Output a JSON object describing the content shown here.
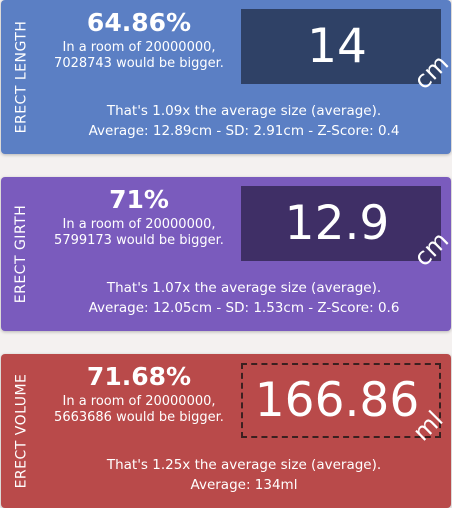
{
  "cards": [
    {
      "label": "ERECT LENGTH",
      "percent": "64.86%",
      "room_line1": "In a room of 20000000,",
      "room_line2": "7028743 would be bigger.",
      "value": "14",
      "unit": "cm",
      "times_line": "That's 1.09x the average size (average).",
      "stats_line": "Average: 12.89cm - SD: 2.91cm - Z-Score: 0.4",
      "color": "#5b7fc4",
      "box_color": "#2f4166"
    },
    {
      "label": "ERECT GIRTH",
      "percent": "71%",
      "room_line1": "In a room of 20000000,",
      "room_line2": "5799173 would be bigger.",
      "value": "12.9",
      "unit": "cm",
      "times_line": "That's 1.07x the average size (average).",
      "stats_line": "Average: 12.05cm - SD: 1.53cm - Z-Score: 0.6",
      "color": "#7a5bbd",
      "box_color": "#3f2f66"
    },
    {
      "label": "ERECT VOLUME",
      "percent": "71.68%",
      "room_line1": "In a room of 20000000,",
      "room_line2": "5663686 would be bigger.",
      "value": "166.86",
      "unit": "ml",
      "times_line": "That's 1.25x the average size (average).",
      "stats_line": "Average: 134ml",
      "color": "#b94a4a",
      "box_color": "#b94a4a"
    }
  ]
}
